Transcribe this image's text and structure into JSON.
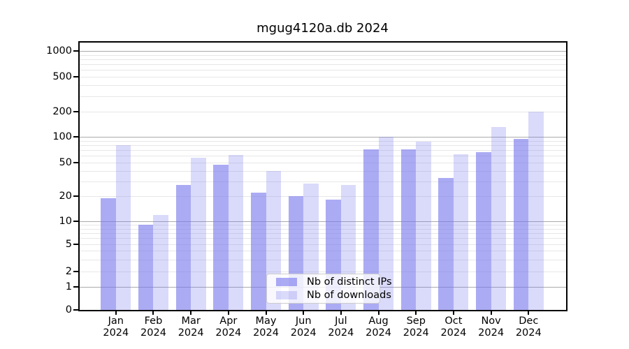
{
  "figure": {
    "title": "mgug4120a.db 2024"
  },
  "chart_data": {
    "type": "bar",
    "title": "mgug4120a.db 2024",
    "yscale": "symlog",
    "grid": true,
    "legend_position": "lower-center",
    "ylim": [
      0,
      1300
    ],
    "y_tick_labels": [
      "0",
      "1",
      "2",
      "5",
      "10",
      "20",
      "50",
      "100",
      "200",
      "500",
      "1000"
    ],
    "categories": [
      "Jan 2024",
      "Feb 2024",
      "Mar 2024",
      "Apr 2024",
      "May 2024",
      "Jun 2024",
      "Jul 2024",
      "Aug 2024",
      "Sep 2024",
      "Oct 2024",
      "Nov 2024",
      "Dec 2024"
    ],
    "series": [
      {
        "name": "Nb of distinct IPs",
        "color": "#7777ee",
        "fill_opacity": 0.62,
        "rendered_color": "#abaaf4",
        "values": [
          19,
          9,
          27,
          47,
          22,
          20,
          18,
          71,
          72,
          33,
          66,
          95
        ]
      },
      {
        "name": "Nb of downloads",
        "color": "#7777ee",
        "fill_opacity": 0.27,
        "rendered_color": "#dcdbf9",
        "values": [
          80,
          12,
          57,
          62,
          40,
          28,
          27,
          100,
          87,
          63,
          130,
          200
        ]
      }
    ]
  }
}
